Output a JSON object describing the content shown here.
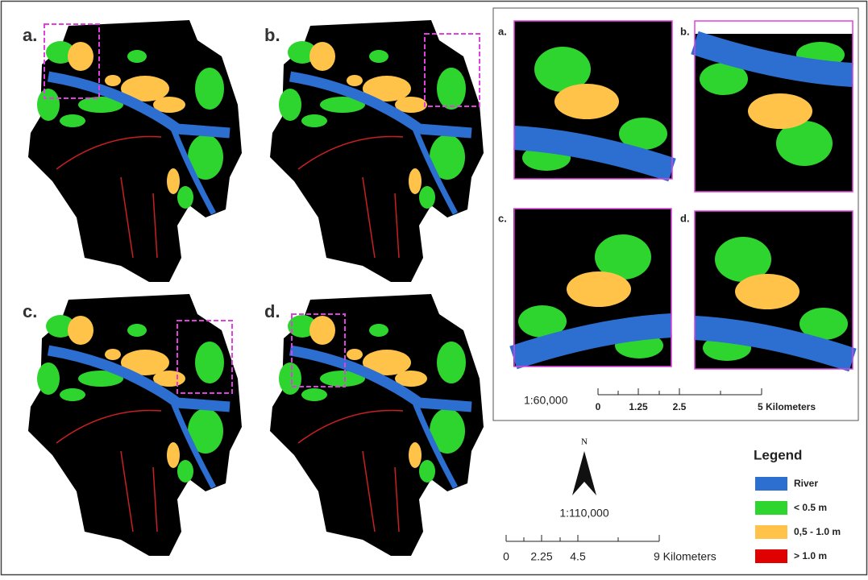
{
  "maps": [
    {
      "label": "a."
    },
    {
      "label": "b."
    },
    {
      "label": "c."
    },
    {
      "label": "d."
    }
  ],
  "insets": {
    "panels": [
      {
        "label": "a."
      },
      {
        "label": "b."
      },
      {
        "label": "c."
      },
      {
        "label": "d."
      }
    ],
    "scale": "1:60,000",
    "scale_bar": [
      "0",
      "1.25",
      "2.5",
      "5 Kilometers"
    ]
  },
  "north": "N",
  "scale": "1:110,000",
  "scale_bar": [
    "0",
    "2.25",
    "4.5",
    "9 Kilometers"
  ],
  "legend": {
    "title": "Legend",
    "items": [
      "River",
      "< 0.5 m",
      "0,5 - 1.0 m",
      "> 1.0 m"
    ]
  }
}
